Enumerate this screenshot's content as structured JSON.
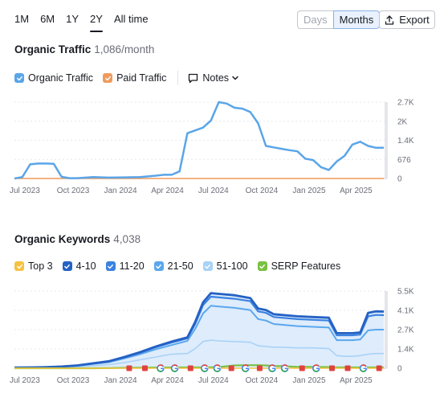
{
  "range_tabs": [
    {
      "label": "1M",
      "active": false
    },
    {
      "label": "6M",
      "active": false
    },
    {
      "label": "1Y",
      "active": false
    },
    {
      "label": "2Y",
      "active": true
    },
    {
      "label": "All time",
      "active": false
    }
  ],
  "granularity": {
    "days_label": "Days",
    "months_label": "Months",
    "selected": "Months"
  },
  "export_label": "Export",
  "organic_traffic": {
    "title": "Organic Traffic",
    "value": "1,086/month",
    "legend": {
      "organic_label": "Organic Traffic",
      "paid_label": "Paid Traffic",
      "notes_label": "Notes"
    },
    "colors": {
      "organic": "#5aa5e8",
      "paid": "#ef9a5c"
    }
  },
  "organic_keywords": {
    "title": "Organic Keywords",
    "value": "4,038",
    "legend": [
      {
        "label": "Top 3",
        "color": "#f5c242"
      },
      {
        "label": "4-10",
        "color": "#2461c4"
      },
      {
        "label": "11-20",
        "color": "#3b82e0"
      },
      {
        "label": "21-50",
        "color": "#5ba7ee"
      },
      {
        "label": "51-100",
        "color": "#a9d2f7"
      },
      {
        "label": "SERP Features",
        "color": "#7ac143"
      }
    ]
  },
  "chart_data": [
    {
      "type": "line",
      "title": "Organic Traffic",
      "x_tick_labels": [
        "Jul 2023",
        "Oct 2023",
        "Jan 2024",
        "Apr 2024",
        "Jul 2024",
        "Oct 2024",
        "Jan 2025",
        "Apr 2025"
      ],
      "y_tick_labels": [
        "2.7K",
        "2K",
        "1.4K",
        "676",
        "0"
      ],
      "ylim": [
        0,
        2700
      ],
      "x_months": [
        0,
        0.5,
        1,
        1.5,
        2,
        2.5,
        3,
        3.5,
        4,
        5,
        6,
        7,
        8,
        9,
        9.5,
        10,
        10.5,
        11,
        11.5,
        12,
        12.5,
        13,
        13.5,
        14,
        14.5,
        15,
        15.5,
        16,
        16.5,
        17,
        17.5,
        18,
        18.5,
        19,
        19.5,
        20,
        20.5,
        21,
        21.5,
        22,
        22.5,
        23,
        23.5
      ],
      "series": [
        {
          "name": "Organic Traffic",
          "values": [
            0,
            50,
            500,
            530,
            530,
            520,
            60,
            10,
            10,
            50,
            30,
            40,
            50,
            100,
            130,
            130,
            250,
            1600,
            1700,
            1800,
            2050,
            2700,
            2650,
            2500,
            2470,
            2350,
            1950,
            1150,
            1100,
            1050,
            1000,
            960,
            700,
            650,
            400,
            300,
            600,
            800,
            1200,
            1300,
            1150,
            1086,
            1086
          ]
        },
        {
          "name": "Paid Traffic",
          "values": [
            0,
            0,
            0,
            0,
            0,
            0,
            0,
            0,
            0,
            0,
            0,
            0,
            0,
            0,
            0,
            0,
            0,
            0,
            0,
            0,
            0,
            0,
            0,
            0,
            0,
            0,
            0,
            0,
            0,
            0,
            0,
            0,
            0,
            0,
            0,
            0,
            0,
            0,
            0,
            0,
            0,
            0,
            0
          ]
        }
      ],
      "legend_position": "top-left",
      "grid": true
    },
    {
      "type": "area",
      "title": "Organic Keywords",
      "x_tick_labels": [
        "Jul 2023",
        "Oct 2023",
        "Jan 2024",
        "Apr 2024",
        "Jul 2024",
        "Oct 2024",
        "Jan 2025",
        "Apr 2025"
      ],
      "y_tick_labels": [
        "5.5K",
        "4.1K",
        "2.7K",
        "1.4K",
        "0"
      ],
      "ylim": [
        0,
        5500
      ],
      "x_months": [
        0,
        1,
        2,
        3,
        4,
        5,
        6,
        7,
        8,
        9,
        10,
        11,
        11.5,
        12,
        12.5,
        13,
        14,
        15,
        15.5,
        16,
        16.5,
        17,
        18,
        19,
        20,
        20.5,
        21,
        21.5,
        22,
        22.5,
        23,
        23.5
      ],
      "series": [
        {
          "name": "Top 3",
          "values": [
            0,
            0,
            0,
            0,
            0,
            0,
            0,
            0,
            0,
            0,
            0,
            0,
            0,
            0,
            0,
            0,
            0,
            0,
            0,
            0,
            0,
            0,
            0,
            0,
            0,
            0,
            0,
            0,
            0,
            0,
            0,
            0
          ]
        },
        {
          "name": "4-10",
          "values": [
            50,
            60,
            80,
            120,
            200,
            350,
            500,
            800,
            1150,
            1550,
            1900,
            2200,
            3300,
            4700,
            5350,
            5300,
            5200,
            5000,
            4250,
            4150,
            3850,
            3800,
            3700,
            3650,
            3600,
            2500,
            2500,
            2500,
            2550,
            3950,
            4050,
            4038
          ]
        },
        {
          "name": "11-20",
          "values": [
            50,
            60,
            80,
            120,
            200,
            340,
            480,
            770,
            1100,
            1500,
            1830,
            2130,
            3150,
            4500,
            5100,
            5050,
            4950,
            4780,
            4050,
            3950,
            3650,
            3600,
            3500,
            3450,
            3400,
            2350,
            2350,
            2350,
            2400,
            3700,
            3800,
            3780
          ]
        },
        {
          "name": "21-50",
          "values": [
            40,
            50,
            70,
            100,
            170,
            300,
            430,
            700,
            1000,
            1350,
            1650,
            1950,
            2800,
            3900,
            4450,
            4400,
            4300,
            4150,
            3500,
            3400,
            3150,
            3100,
            3000,
            2950,
            2900,
            2000,
            2000,
            2000,
            2050,
            2700,
            2750,
            2750
          ]
        },
        {
          "name": "51-100",
          "values": [
            20,
            30,
            40,
            60,
            100,
            180,
            260,
            400,
            600,
            800,
            1000,
            1050,
            1400,
            1900,
            2000,
            1950,
            1900,
            1850,
            1600,
            1550,
            1500,
            1500,
            1450,
            1450,
            1400,
            900,
            850,
            850,
            900,
            1000,
            1050,
            1050
          ]
        },
        {
          "name": "SERP Features",
          "values": [
            0,
            0,
            0,
            0,
            0,
            0,
            10,
            30,
            40,
            50,
            50,
            60,
            60,
            60,
            70,
            80,
            200,
            220,
            220,
            200,
            150,
            150,
            100,
            100,
            80,
            60,
            60,
            60,
            60,
            60,
            60,
            60
          ]
        }
      ],
      "legend_position": "top-left",
      "grid": true
    }
  ]
}
